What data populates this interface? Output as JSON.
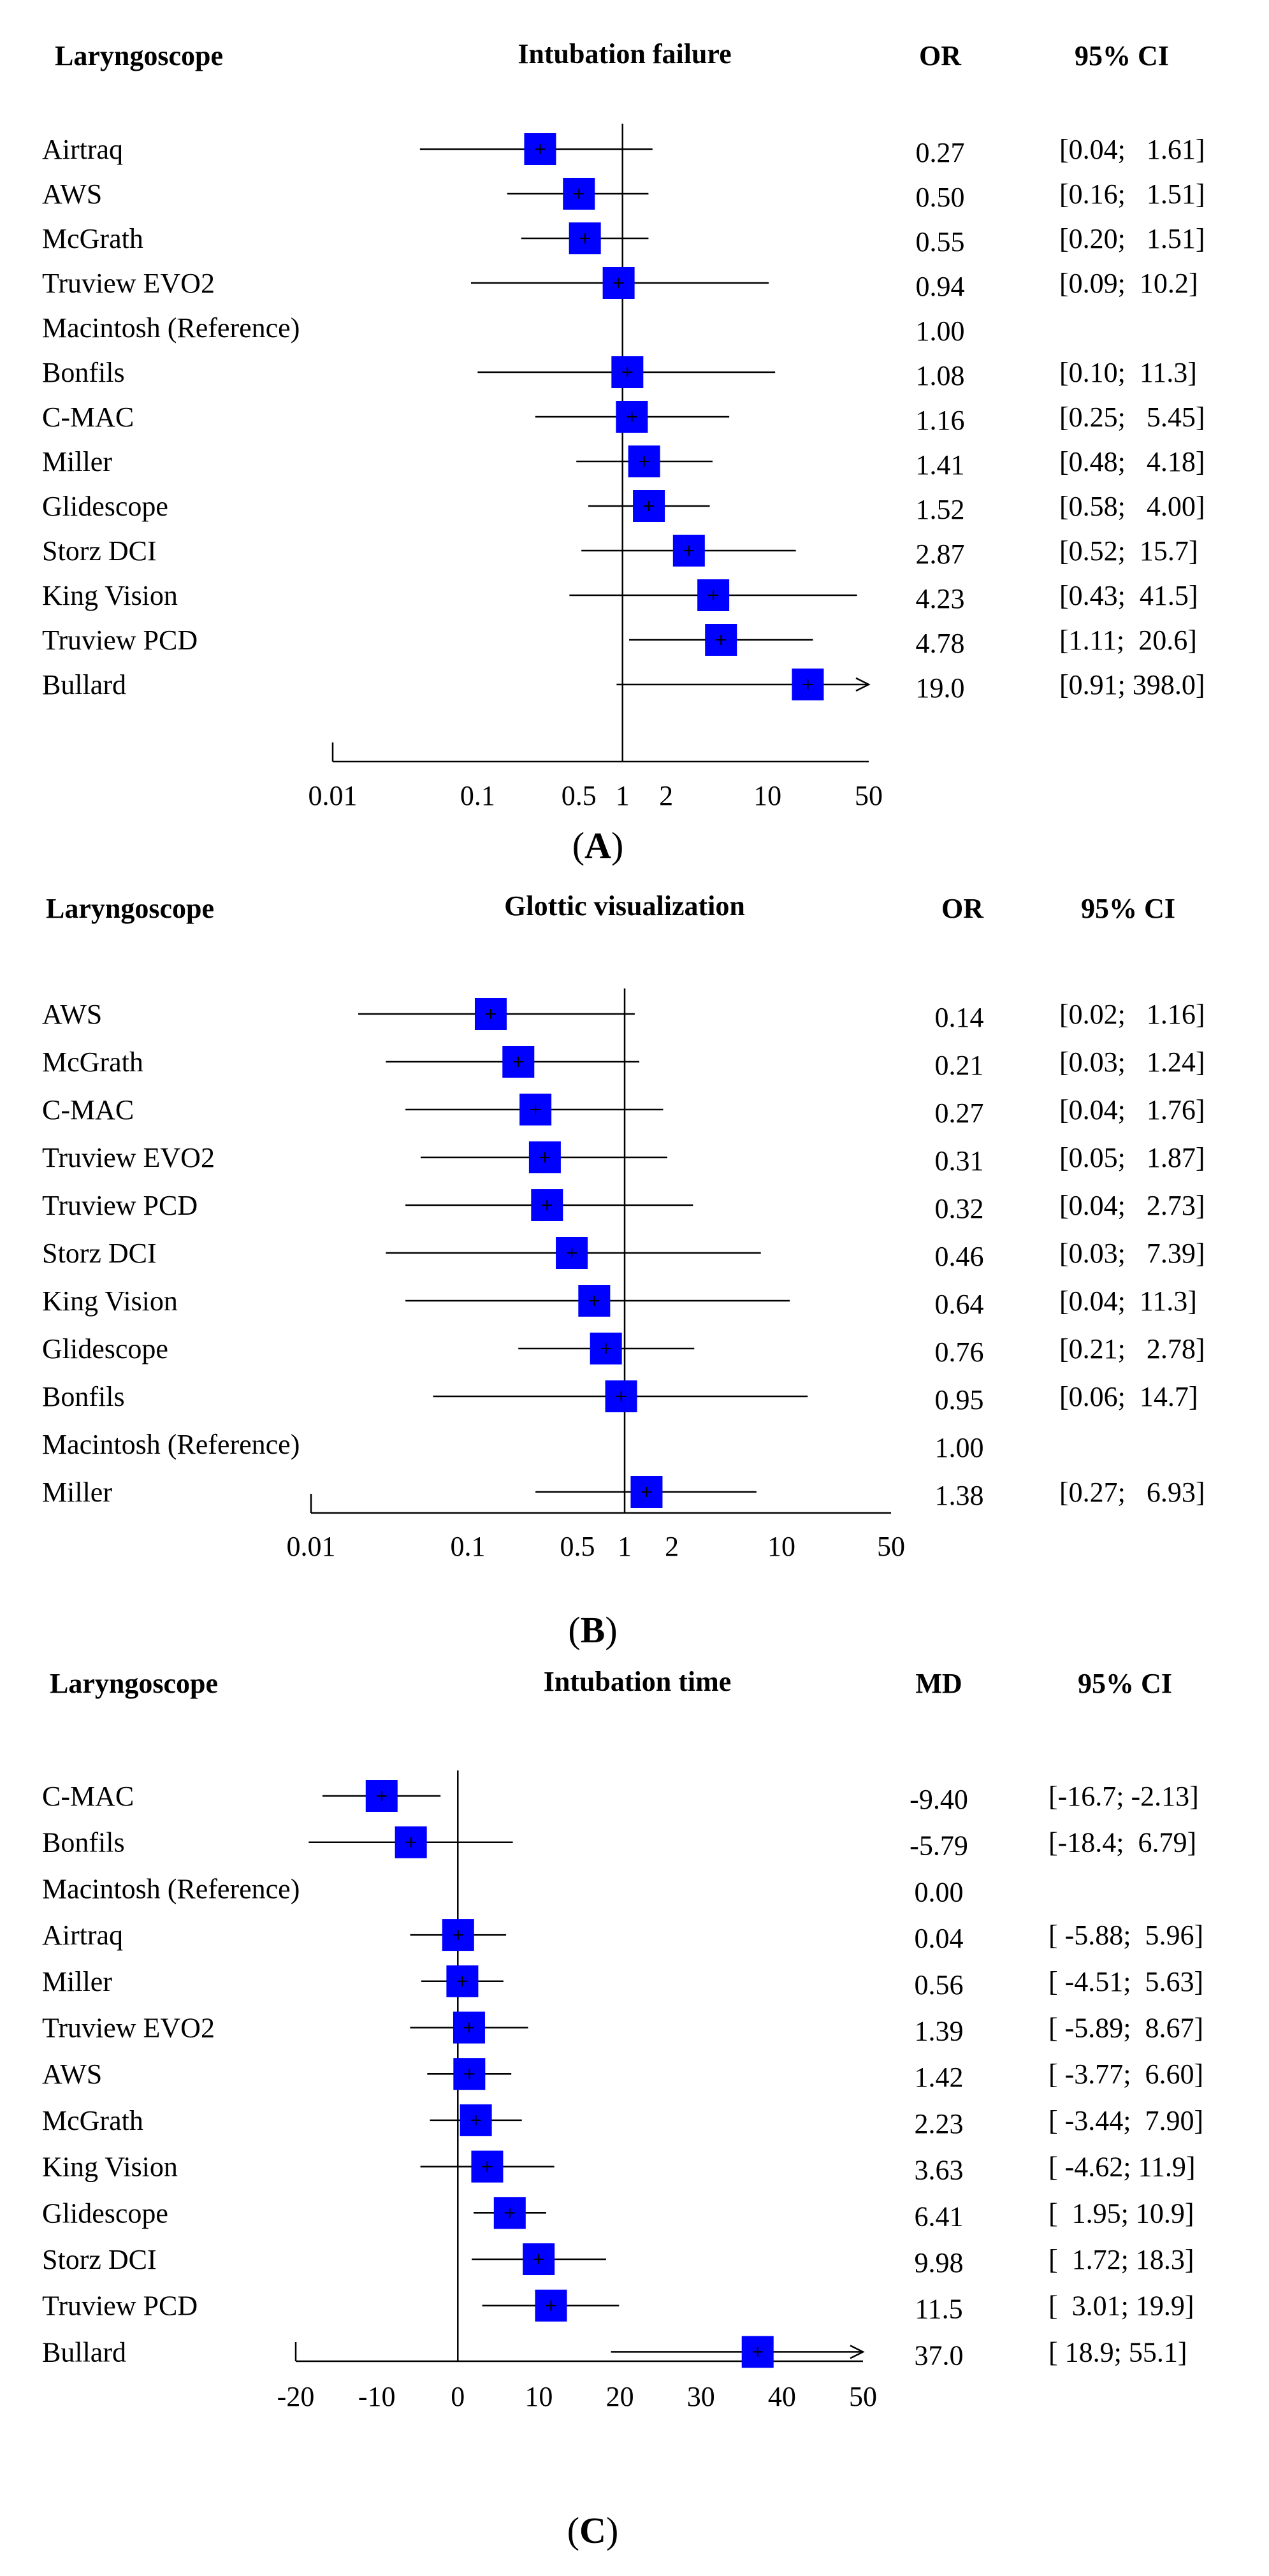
{
  "colors": {
    "marker": "#0000FF",
    "line": "#000000"
  },
  "chart_data": [
    {
      "type": "forest",
      "panel_label": "A",
      "headers": {
        "label": "Laryngoscope",
        "title": "Intubation failure",
        "estimate": "OR",
        "ci": "95% CI"
      },
      "scale": "log",
      "xlim": [
        0.01,
        50
      ],
      "reference_value": 1,
      "ticks": [
        {
          "v": 0.01,
          "label": "0.01"
        },
        {
          "v": 0.1,
          "label": "0.1"
        },
        {
          "v": 0.5,
          "label": "0.5"
        },
        {
          "v": 1,
          "label": "1"
        },
        {
          "v": 2,
          "label": "2"
        },
        {
          "v": 10,
          "label": "10"
        },
        {
          "v": 50,
          "label": "50"
        }
      ],
      "rows": [
        {
          "label": "Airtraq",
          "est": 0.27,
          "est_text": "0.27",
          "lo": 0.04,
          "hi": 1.61,
          "ci_text": "[0.04;   1.61]"
        },
        {
          "label": "AWS",
          "est": 0.5,
          "est_text": "0.50",
          "lo": 0.16,
          "hi": 1.51,
          "ci_text": "[0.16;   1.51]"
        },
        {
          "label": "McGrath",
          "est": 0.55,
          "est_text": "0.55",
          "lo": 0.2,
          "hi": 1.51,
          "ci_text": "[0.20;   1.51]"
        },
        {
          "label": "Truview EVO2",
          "est": 0.94,
          "est_text": "0.94",
          "lo": 0.09,
          "hi": 10.2,
          "ci_text": "[0.09;  10.2]"
        },
        {
          "label": "Macintosh (Reference)",
          "est": 1.0,
          "est_text": "1.00",
          "lo": null,
          "hi": null,
          "ci_text": ""
        },
        {
          "label": "Bonfils",
          "est": 1.08,
          "est_text": "1.08",
          "lo": 0.1,
          "hi": 11.3,
          "ci_text": "[0.10;  11.3]"
        },
        {
          "label": "C-MAC",
          "est": 1.16,
          "est_text": "1.16",
          "lo": 0.25,
          "hi": 5.45,
          "ci_text": "[0.25;   5.45]"
        },
        {
          "label": "Miller",
          "est": 1.41,
          "est_text": "1.41",
          "lo": 0.48,
          "hi": 4.18,
          "ci_text": "[0.48;   4.18]"
        },
        {
          "label": "Glidescope",
          "est": 1.52,
          "est_text": "1.52",
          "lo": 0.58,
          "hi": 4.0,
          "ci_text": "[0.58;   4.00]"
        },
        {
          "label": "Storz DCI",
          "est": 2.87,
          "est_text": "2.87",
          "lo": 0.52,
          "hi": 15.7,
          "ci_text": "[0.52;  15.7]"
        },
        {
          "label": "King Vision",
          "est": 4.23,
          "est_text": "4.23",
          "lo": 0.43,
          "hi": 41.5,
          "ci_text": "[0.43;  41.5]"
        },
        {
          "label": "Truview PCD",
          "est": 4.78,
          "est_text": "4.78",
          "lo": 1.11,
          "hi": 20.6,
          "ci_text": "[1.11;  20.6]"
        },
        {
          "label": "Bullard",
          "est": 19.0,
          "est_text": "19.0",
          "lo": 0.91,
          "hi": 398.0,
          "ci_text": "[0.91; 398.0]",
          "arrow": true
        }
      ]
    },
    {
      "type": "forest",
      "panel_label": "B",
      "headers": {
        "label": "Laryngoscope",
        "title": "Glottic visualization",
        "estimate": "OR",
        "ci": "95% CI"
      },
      "scale": "log",
      "xlim": [
        0.01,
        50
      ],
      "reference_value": 1,
      "ticks": [
        {
          "v": 0.01,
          "label": "0.01"
        },
        {
          "v": 0.1,
          "label": "0.1"
        },
        {
          "v": 0.5,
          "label": "0.5"
        },
        {
          "v": 1,
          "label": "1"
        },
        {
          "v": 2,
          "label": "2"
        },
        {
          "v": 10,
          "label": "10"
        },
        {
          "v": 50,
          "label": "50"
        }
      ],
      "rows": [
        {
          "label": "AWS",
          "est": 0.14,
          "est_text": "0.14",
          "lo": 0.02,
          "hi": 1.16,
          "ci_text": "[0.02;   1.16]"
        },
        {
          "label": "McGrath",
          "est": 0.21,
          "est_text": "0.21",
          "lo": 0.03,
          "hi": 1.24,
          "ci_text": "[0.03;   1.24]"
        },
        {
          "label": "C-MAC",
          "est": 0.27,
          "est_text": "0.27",
          "lo": 0.04,
          "hi": 1.76,
          "ci_text": "[0.04;   1.76]"
        },
        {
          "label": "Truview EVO2",
          "est": 0.31,
          "est_text": "0.31",
          "lo": 0.05,
          "hi": 1.87,
          "ci_text": "[0.05;   1.87]"
        },
        {
          "label": "Truview PCD",
          "est": 0.32,
          "est_text": "0.32",
          "lo": 0.04,
          "hi": 2.73,
          "ci_text": "[0.04;   2.73]"
        },
        {
          "label": "Storz DCI",
          "est": 0.46,
          "est_text": "0.46",
          "lo": 0.03,
          "hi": 7.39,
          "ci_text": "[0.03;   7.39]"
        },
        {
          "label": "King Vision",
          "est": 0.64,
          "est_text": "0.64",
          "lo": 0.04,
          "hi": 11.3,
          "ci_text": "[0.04;  11.3]"
        },
        {
          "label": "Glidescope",
          "est": 0.76,
          "est_text": "0.76",
          "lo": 0.21,
          "hi": 2.78,
          "ci_text": "[0.21;   2.78]"
        },
        {
          "label": "Bonfils",
          "est": 0.95,
          "est_text": "0.95",
          "lo": 0.06,
          "hi": 14.7,
          "ci_text": "[0.06;  14.7]"
        },
        {
          "label": "Macintosh (Reference)",
          "est": 1.0,
          "est_text": "1.00",
          "lo": null,
          "hi": null,
          "ci_text": ""
        },
        {
          "label": "Miller",
          "est": 1.38,
          "est_text": "1.38",
          "lo": 0.27,
          "hi": 6.93,
          "ci_text": "[0.27;   6.93]"
        }
      ]
    },
    {
      "type": "forest",
      "panel_label": "C",
      "headers": {
        "label": "Laryngoscope",
        "title": "Intubation time",
        "estimate": "MD",
        "ci": "95% CI"
      },
      "scale": "linear",
      "xlim": [
        -20,
        50
      ],
      "reference_value": 0,
      "ticks": [
        {
          "v": -20,
          "label": "-20"
        },
        {
          "v": -10,
          "label": "-10"
        },
        {
          "v": 0,
          "label": "0"
        },
        {
          "v": 10,
          "label": "10"
        },
        {
          "v": 20,
          "label": "20"
        },
        {
          "v": 30,
          "label": "30"
        },
        {
          "v": 40,
          "label": "40"
        },
        {
          "v": 50,
          "label": "50"
        }
      ],
      "rows": [
        {
          "label": "C-MAC",
          "est": -9.4,
          "est_text": "-9.40",
          "lo": -16.7,
          "hi": -2.13,
          "ci_text": "[-16.7; -2.13]"
        },
        {
          "label": "Bonfils",
          "est": -5.79,
          "est_text": "-5.79",
          "lo": -18.4,
          "hi": 6.79,
          "ci_text": "[-18.4;  6.79]"
        },
        {
          "label": "Macintosh (Reference)",
          "est": 0.0,
          "est_text": "0.00",
          "lo": null,
          "hi": null,
          "ci_text": ""
        },
        {
          "label": "Airtraq",
          "est": 0.04,
          "est_text": "0.04",
          "lo": -5.88,
          "hi": 5.96,
          "ci_text": "[ -5.88;  5.96]"
        },
        {
          "label": "Miller",
          "est": 0.56,
          "est_text": "0.56",
          "lo": -4.51,
          "hi": 5.63,
          "ci_text": "[ -4.51;  5.63]"
        },
        {
          "label": "Truview EVO2",
          "est": 1.39,
          "est_text": "1.39",
          "lo": -5.89,
          "hi": 8.67,
          "ci_text": "[ -5.89;  8.67]"
        },
        {
          "label": "AWS",
          "est": 1.42,
          "est_text": "1.42",
          "lo": -3.77,
          "hi": 6.6,
          "ci_text": "[ -3.77;  6.60]"
        },
        {
          "label": "McGrath",
          "est": 2.23,
          "est_text": "2.23",
          "lo": -3.44,
          "hi": 7.9,
          "ci_text": "[ -3.44;  7.90]"
        },
        {
          "label": "King Vision",
          "est": 3.63,
          "est_text": "3.63",
          "lo": -4.62,
          "hi": 11.9,
          "ci_text": "[ -4.62; 11.9]"
        },
        {
          "label": "Glidescope",
          "est": 6.41,
          "est_text": "6.41",
          "lo": 1.95,
          "hi": 10.9,
          "ci_text": "[  1.95; 10.9]"
        },
        {
          "label": "Storz DCI",
          "est": 9.98,
          "est_text": "9.98",
          "lo": 1.72,
          "hi": 18.3,
          "ci_text": "[  1.72; 18.3]"
        },
        {
          "label": "Truview PCD",
          "est": 11.5,
          "est_text": "11.5",
          "lo": 3.01,
          "hi": 19.9,
          "ci_text": "[  3.01; 19.9]"
        },
        {
          "label": "Bullard",
          "est": 37.0,
          "est_text": "37.0",
          "lo": 18.9,
          "hi": 55.1,
          "ci_text": "[ 18.9; 55.1]",
          "arrow": true
        }
      ]
    }
  ]
}
